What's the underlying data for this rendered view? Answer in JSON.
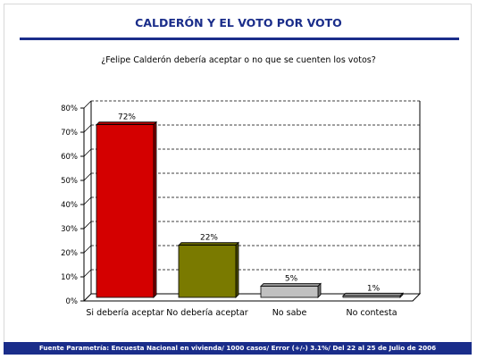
{
  "title": "CALDERÓN Y EL VOTO POR VOTO",
  "question": "¿Felipe Calderón debería aceptar o no que se cuenten los votos?",
  "footer": "Fuente Parametría: Encuesta Nacional en vivienda/ 1000 casos/ Error (+/-) 3.1%/ Del 22 al 25 de Julio de 2006",
  "chart_data": {
    "type": "bar",
    "categories": [
      "Si debería aceptar",
      "No debería aceptar",
      "No sabe",
      "No contesta"
    ],
    "values": [
      72,
      22,
      5,
      1
    ],
    "data_labels": [
      "72%",
      "22%",
      "5%",
      "1%"
    ],
    "colors": [
      "#d40000",
      "#7a7a00",
      "#c0c0c0",
      "#c0c0c0"
    ],
    "ylim": [
      0,
      80
    ],
    "yticks": [
      "0%",
      "10%",
      "20%",
      "30%",
      "40%",
      "50%",
      "60%",
      "70%",
      "80%"
    ],
    "grid": true,
    "legend": false
  }
}
